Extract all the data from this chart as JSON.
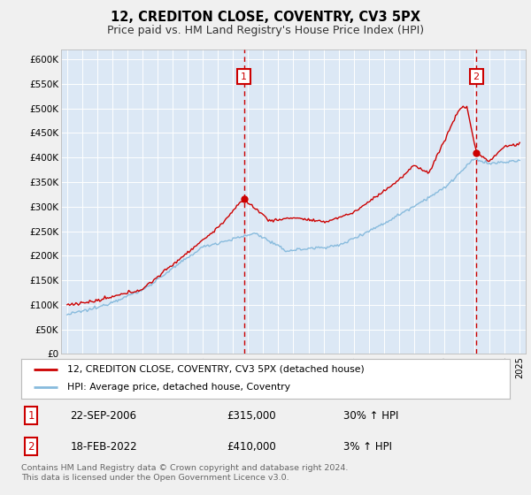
{
  "title": "12, CREDITON CLOSE, COVENTRY, CV3 5PX",
  "subtitle": "Price paid vs. HM Land Registry's House Price Index (HPI)",
  "background_color": "#f0f0f0",
  "plot_bg_color": "#dce8f5",
  "grid_color": "#ffffff",
  "y_ticks": [
    0,
    50000,
    100000,
    150000,
    200000,
    250000,
    300000,
    350000,
    400000,
    450000,
    500000,
    550000,
    600000
  ],
  "y_tick_labels": [
    "£0",
    "£50K",
    "£100K",
    "£150K",
    "£200K",
    "£250K",
    "£300K",
    "£350K",
    "£400K",
    "£450K",
    "£500K",
    "£550K",
    "£600K"
  ],
  "x_start_year": 1995,
  "x_end_year": 2025,
  "marker1_date": 2006.72,
  "marker1_price": 315000,
  "marker2_date": 2022.12,
  "marker2_price": 410000,
  "sale_color": "#cc0000",
  "hpi_color": "#88bbdd",
  "legend_sale_label": "12, CREDITON CLOSE, COVENTRY, CV3 5PX (detached house)",
  "legend_hpi_label": "HPI: Average price, detached house, Coventry",
  "annotation1_date": "22-SEP-2006",
  "annotation1_price": "£315,000",
  "annotation1_hpi": "30% ↑ HPI",
  "annotation2_date": "18-FEB-2022",
  "annotation2_price": "£410,000",
  "annotation2_hpi": "3% ↑ HPI",
  "footer": "Contains HM Land Registry data © Crown copyright and database right 2024.\nThis data is licensed under the Open Government Licence v3.0."
}
